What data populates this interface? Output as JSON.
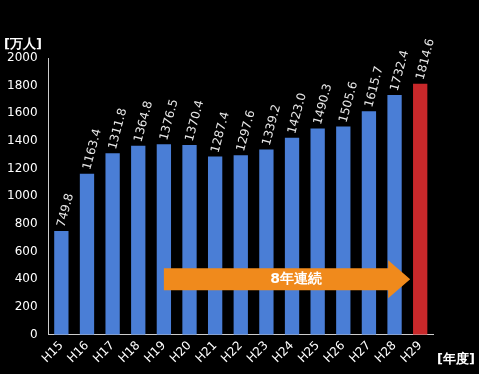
{
  "chart_data": {
    "type": "bar",
    "y_label": "[万人]",
    "x_label": "[年度]",
    "annotation": "8年連続",
    "categories": [
      "H15",
      "H16",
      "H17",
      "H18",
      "H19",
      "H20",
      "H21",
      "H22",
      "H23",
      "H24",
      "H25",
      "H26",
      "H27",
      "H28",
      "H29"
    ],
    "values": [
      749.8,
      1163.4,
      1311.8,
      1364.8,
      1376.5,
      1370.4,
      1287.4,
      1297.6,
      1339.2,
      1423.0,
      1490.3,
      1505.6,
      1615.7,
      1732.4,
      1814.6
    ],
    "value_labels": [
      "749.8",
      "1163.4",
      "1311.8",
      "1364.8",
      "1376.5",
      "1370.4",
      "1287.4",
      "1297.6",
      "1339.2",
      "1423.0",
      "1490.3",
      "1505.6",
      "1615.7",
      "1732.4",
      "1814.6"
    ],
    "colors": [
      "#4a7ed6",
      "#4a7ed6",
      "#4a7ed6",
      "#4a7ed6",
      "#4a7ed6",
      "#4a7ed6",
      "#4a7ed6",
      "#4a7ed6",
      "#4a7ed6",
      "#4a7ed6",
      "#4a7ed6",
      "#4a7ed6",
      "#4a7ed6",
      "#4a7ed6",
      "#c8282a"
    ],
    "ylim": [
      0,
      2000
    ],
    "yticks": [
      0,
      200,
      400,
      600,
      800,
      1000,
      1200,
      1400,
      1600,
      1800,
      2000
    ],
    "grid": false,
    "data_labels": true
  }
}
